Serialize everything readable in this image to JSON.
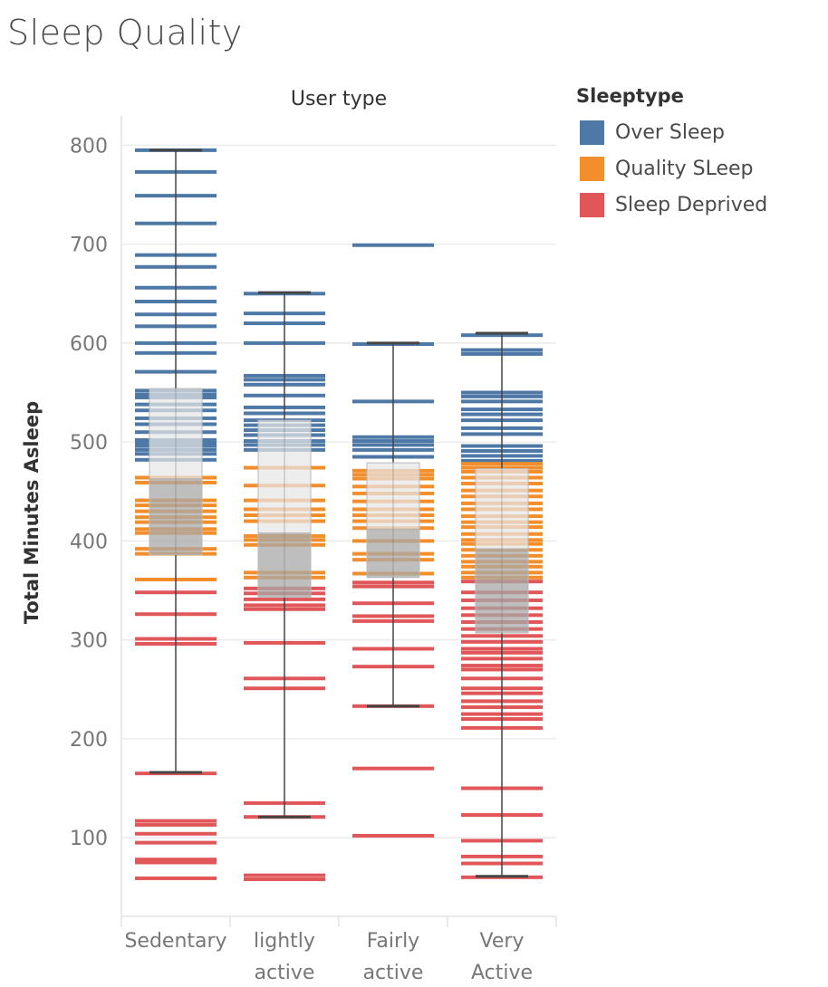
{
  "title": "Sleep Quality",
  "legend": {
    "title": "Sleeptype",
    "items": [
      {
        "label": "Over Sleep",
        "color": "#4e79a7"
      },
      {
        "label": "Quality SLeep",
        "color": "#f28e2b"
      },
      {
        "label": "Sleep Deprived",
        "color": "#e15759"
      }
    ]
  },
  "chart_data": {
    "type": "box plot with strip marks",
    "column_header": "User type",
    "ylabel": "Total Minutes Asleep",
    "ylim": [
      0,
      800
    ],
    "y_ticks": [
      100,
      200,
      300,
      400,
      500,
      600,
      700,
      800
    ],
    "categories": [
      "Sedentary",
      "lightly\nactive",
      "Fairly\nactive",
      "Very\nActive"
    ],
    "boxes": [
      {
        "category": "Sedentary",
        "whisker_low": 166,
        "q1": 386,
        "median": 463,
        "q3": 554,
        "whisker_high": 795
      },
      {
        "category": "lightly active",
        "whisker_low": 121,
        "q1": 343,
        "median": 408,
        "q3": 522,
        "whisker_high": 651
      },
      {
        "category": "Fairly active",
        "whisker_low": 233,
        "q1": 363,
        "median": 412,
        "q3": 479,
        "whisker_high": 600
      },
      {
        "category": "Very Active",
        "whisker_low": 61,
        "q1": 307,
        "median": 392,
        "q3": 473,
        "whisker_high": 610
      }
    ],
    "series": [
      {
        "name": "Over Sleep",
        "color": "#4e79a7",
        "values": [
          [
            795,
            773,
            749,
            721,
            689,
            677,
            656,
            642,
            629,
            617,
            600,
            590,
            571,
            552,
            548,
            545,
            538,
            532,
            524,
            518,
            510,
            502,
            499,
            496,
            492,
            488,
            482
          ],
          [
            650,
            630,
            620,
            600,
            567,
            563,
            558,
            547,
            535,
            529,
            522,
            517,
            512,
            507,
            501,
            497,
            492
          ],
          [
            699,
            599,
            541,
            505,
            501,
            497,
            492,
            485
          ],
          [
            608,
            593,
            589,
            550,
            546,
            541,
            533,
            528,
            522,
            514,
            508,
            496,
            491,
            486,
            481
          ]
        ]
      },
      {
        "name": "Quality SLeep",
        "color": "#f28e2b",
        "values": [
          [
            464,
            459,
            441,
            436,
            430,
            424,
            419,
            412,
            408,
            392,
            387,
            361
          ],
          [
            474,
            456,
            441,
            432,
            426,
            420,
            405,
            401,
            396,
            368,
            363
          ],
          [
            471,
            467,
            463,
            455,
            448,
            440,
            432,
            426,
            420,
            413,
            400,
            387,
            381,
            367
          ],
          [
            478,
            474,
            470,
            464,
            458,
            451,
            445,
            438,
            432,
            425,
            419,
            414,
            407,
            401,
            397,
            391,
            385,
            379,
            374,
            368,
            363
          ]
        ]
      },
      {
        "name": "Sleep Deprived",
        "color": "#e15759",
        "values": [
          [
            348,
            326,
            301,
            296,
            165,
            117,
            113,
            104,
            95,
            78,
            75,
            59
          ],
          [
            352,
            347,
            341,
            335,
            331,
            297,
            261,
            251,
            135,
            121,
            62,
            58
          ],
          [
            358,
            354,
            337,
            324,
            319,
            291,
            273,
            233,
            170,
            102
          ],
          [
            359,
            348,
            340,
            332,
            325,
            318,
            311,
            304,
            298,
            291,
            287,
            281,
            274,
            270,
            261,
            251,
            246,
            238,
            232,
            225,
            220,
            211,
            150,
            123,
            97,
            81,
            74,
            60
          ]
        ]
      }
    ]
  }
}
